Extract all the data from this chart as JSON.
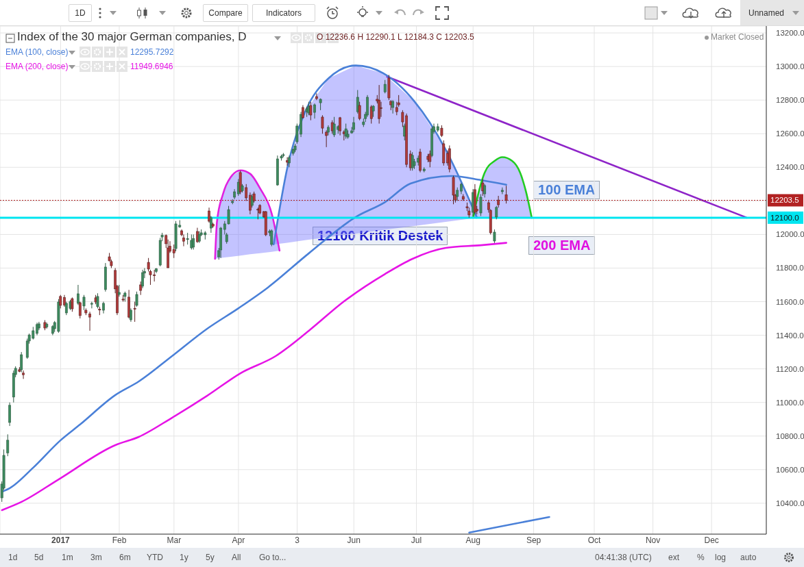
{
  "chart_data": {
    "type": "candlestick",
    "title": "Index of the 30 major German companies, D",
    "x": [
      "2016-12-03",
      "2016-12-04",
      "2016-12-06",
      "2016-12-07",
      "2016-12-09",
      "2016-12-10",
      "2016-12-12",
      "2016-12-13",
      "2016-12-14",
      "2016-12-16",
      "2016-12-17",
      "2016-12-19",
      "2016-12-21",
      "2016-12-22",
      "2016-12-25",
      "2016-12-26",
      "2016-12-29",
      "2016-12-30",
      "2017-01-01",
      "2017-01-02",
      "2017-01-04",
      "2017-01-05",
      "2017-01-07",
      "2017-01-08",
      "2017-01-11",
      "2017-01-12",
      "2017-01-14",
      "2017-01-15",
      "2017-01-17",
      "2017-01-18",
      "2017-01-20",
      "2017-01-21",
      "2017-01-22",
      "2017-01-24",
      "2017-01-25",
      "2017-01-27",
      "2017-01-28",
      "2017-01-30",
      "2017-01-31",
      "2017-02-01",
      "2017-02-03",
      "2017-02-04",
      "2017-02-06",
      "2017-02-07",
      "2017-02-09",
      "2017-02-10",
      "2017-02-12",
      "2017-02-13",
      "2017-02-14",
      "2017-02-16",
      "2017-02-17",
      "2017-02-19",
      "2017-02-20",
      "2017-02-22",
      "2017-02-23",
      "2017-02-25",
      "2017-02-26",
      "2017-02-27",
      "2017-03-01",
      "2017-03-02",
      "2017-03-04",
      "2017-03-05",
      "2017-03-06",
      "2017-03-08",
      "2017-03-10",
      "2017-03-11",
      "2017-03-13",
      "2017-03-14",
      "2017-03-15",
      "2017-03-17",
      "2017-03-19",
      "2017-03-20",
      "2017-03-21",
      "2017-03-24",
      "2017-03-25",
      "2017-03-27",
      "2017-03-28",
      "2017-03-29",
      "2017-03-31",
      "2017-04-01",
      "2017-04-03",
      "2017-04-04",
      "2017-04-05",
      "2017-04-07",
      "2017-04-09",
      "2017-04-10",
      "2017-04-11",
      "2017-04-13",
      "2017-04-14",
      "2017-04-16",
      "2017-04-17",
      "2017-04-19",
      "2017-04-20",
      "2017-04-23",
      "2017-04-25",
      "2017-04-26",
      "2017-04-28",
      "2017-04-29",
      "2017-05-01",
      "2017-05-02",
      "2017-05-03",
      "2017-05-05",
      "2017-05-06",
      "2017-05-08",
      "2017-05-09",
      "2017-05-10",
      "2017-05-12",
      "2017-05-13",
      "2017-05-15",
      "2017-05-16",
      "2017-05-18",
      "2017-05-19",
      "2017-05-21",
      "2017-05-22",
      "2017-05-24",
      "2017-05-25",
      "2017-05-27",
      "2017-05-28",
      "2017-05-29",
      "2017-05-31",
      "2017-06-01",
      "2017-06-03",
      "2017-06-04",
      "2017-06-06",
      "2017-06-07",
      "2017-06-08",
      "2017-06-10",
      "2017-06-11",
      "2017-06-13",
      "2017-06-14",
      "2017-06-15",
      "2017-06-17",
      "2017-06-19",
      "2017-06-20",
      "2017-06-21",
      "2017-06-23",
      "2017-06-24",
      "2017-06-26",
      "2017-06-27",
      "2017-06-28",
      "2017-06-30",
      "2017-07-01",
      "2017-07-02",
      "2017-07-04",
      "2017-07-05",
      "2017-07-07",
      "2017-07-09",
      "2017-07-10",
      "2017-07-11",
      "2017-07-12",
      "2017-07-14",
      "2017-07-16",
      "2017-07-17",
      "2017-07-19",
      "2017-07-20",
      "2017-07-22",
      "2017-07-23",
      "2017-07-24",
      "2017-07-26",
      "2017-07-27",
      "2017-07-29",
      "2017-07-30",
      "2017-08-01",
      "2017-08-02",
      "2017-08-03",
      "2017-08-05",
      "2017-08-06",
      "2017-08-07",
      "2017-08-09",
      "2017-08-10",
      "2017-08-12",
      "2017-08-13",
      "2017-08-14",
      "2017-08-16",
      "2017-08-18"
    ],
    "ohlc": [
      [
        10432,
        10530,
        10408,
        10514
      ],
      [
        10490,
        10720,
        10480,
        10685
      ],
      [
        10700,
        10810,
        10680,
        10775
      ],
      [
        10881,
        11000,
        10860,
        10983
      ],
      [
        11032,
        11190,
        11000,
        11174
      ],
      [
        11166,
        11215,
        11150,
        11203
      ],
      [
        11195,
        11210,
        11180,
        11185
      ],
      [
        11195,
        11300,
        11180,
        11284
      ],
      [
        11175,
        11190,
        11140,
        11165
      ],
      [
        11268,
        11380,
        11260,
        11366
      ],
      [
        11366,
        11410,
        11350,
        11402
      ],
      [
        11382,
        11450,
        11375,
        11427
      ],
      [
        11411,
        11475,
        11400,
        11464
      ],
      [
        11443,
        11480,
        11430,
        11468
      ],
      [
        11476,
        11490,
        11430,
        11443
      ],
      [
        11450,
        11475,
        11440,
        11465
      ],
      [
        11411,
        11460,
        11400,
        11452
      ],
      [
        11439,
        11485,
        11420,
        11476
      ],
      [
        11423,
        11615,
        11415,
        11598
      ],
      [
        11631,
        11640,
        11560,
        11578
      ],
      [
        11625,
        11640,
        11570,
        11580
      ],
      [
        11533,
        11600,
        11520,
        11590
      ],
      [
        11560,
        11610,
        11550,
        11600
      ],
      [
        11618,
        11625,
        11540,
        11557
      ],
      [
        11590,
        11700,
        11580,
        11647
      ],
      [
        11594,
        11600,
        11500,
        11517
      ],
      [
        11574,
        11640,
        11550,
        11627
      ],
      [
        11549,
        11560,
        11520,
        11533
      ],
      [
        11527,
        11540,
        11427,
        11508
      ],
      [
        11585,
        11600,
        11560,
        11590
      ],
      [
        11623,
        11640,
        11585,
        11598
      ],
      [
        11570,
        11650,
        11560,
        11631
      ],
      [
        11555,
        11570,
        11520,
        11550
      ],
      [
        11549,
        11600,
        11530,
        11590
      ],
      [
        11672,
        11830,
        11660,
        11806
      ],
      [
        11867,
        11890,
        11840,
        11843
      ],
      [
        11839,
        11850,
        11800,
        11814
      ],
      [
        11786,
        11800,
        11650,
        11676
      ],
      [
        11692,
        11700,
        11520,
        11533
      ],
      [
        11643,
        11700,
        11630,
        11655
      ],
      [
        11615,
        11640,
        11600,
        11610
      ],
      [
        11631,
        11660,
        11600,
        11651
      ],
      [
        11627,
        11670,
        11500,
        11508
      ],
      [
        11492,
        11560,
        11480,
        11549
      ],
      [
        11560,
        11600,
        11480,
        11555
      ],
      [
        11578,
        11660,
        11570,
        11643
      ],
      [
        11700,
        11720,
        11640,
        11667
      ],
      [
        11692,
        11790,
        11680,
        11773
      ],
      [
        11770,
        11800,
        11740,
        11780
      ],
      [
        11834,
        11860,
        11780,
        11794
      ],
      [
        11780,
        11790,
        11700,
        11760
      ],
      [
        11760,
        11790,
        11720,
        11755
      ],
      [
        11780,
        11800,
        11770,
        11795
      ],
      [
        11818,
        11980,
        11810,
        11965
      ],
      [
        11985,
        12010,
        11960,
        11995
      ],
      [
        11994,
        12000,
        11920,
        11945
      ],
      [
        11920,
        11970,
        11800,
        11802
      ],
      [
        11930,
        11960,
        11890,
        11900
      ],
      [
        11910,
        11940,
        11860,
        11890
      ],
      [
        11916,
        12080,
        11900,
        12063
      ],
      [
        12045,
        12085,
        12040,
        12055
      ],
      [
        12022,
        12030,
        11990,
        11998
      ],
      [
        11980,
        12000,
        11930,
        11960
      ],
      [
        11970,
        12010,
        11940,
        11975
      ],
      [
        11920,
        12000,
        11910,
        11965
      ],
      [
        11925,
        12000,
        11910,
        11975
      ],
      [
        12018,
        12040,
        11950,
        11957
      ],
      [
        11960,
        12020,
        11950,
        12000
      ],
      [
        11998,
        12030,
        11990,
        12010
      ],
      [
        11998,
        12020,
        11970,
        12010
      ],
      [
        12140,
        12160,
        12070,
        12079
      ],
      [
        12038,
        12110,
        12010,
        12100
      ],
      [
        12060,
        12070,
        12040,
        12050
      ],
      [
        11867,
        11920,
        11850,
        11904
      ],
      [
        11908,
        12045,
        11860,
        12038
      ],
      [
        12030,
        12080,
        12000,
        12063
      ],
      [
        11957,
        12010,
        11945,
        11998
      ],
      [
        12063,
        12170,
        12060,
        12148
      ],
      [
        12190,
        12210,
        12180,
        12197
      ],
      [
        12222,
        12270,
        12210,
        12254
      ],
      [
        12242,
        12330,
        12230,
        12311
      ],
      [
        12369,
        12380,
        12240,
        12254
      ],
      [
        12260,
        12300,
        12250,
        12290
      ],
      [
        12279,
        12300,
        12200,
        12218
      ],
      [
        12234,
        12250,
        12120,
        12144
      ],
      [
        12173,
        12240,
        12160,
        12226
      ],
      [
        12242,
        12255,
        12190,
        12201
      ],
      [
        12150,
        12160,
        12090,
        12145
      ],
      [
        12173,
        12180,
        12120,
        12128
      ],
      [
        12136,
        12140,
        12100,
        12104
      ],
      [
        12136,
        12140,
        11990,
        11998
      ],
      [
        12010,
        12030,
        11990,
        12020
      ],
      [
        11941,
        12030,
        11930,
        12022
      ],
      [
        12295,
        12470,
        12290,
        12450
      ],
      [
        12455,
        12475,
        12440,
        12466
      ],
      [
        12470,
        12485,
        12460,
        12475
      ],
      [
        12440,
        12460,
        12410,
        12430
      ],
      [
        12426,
        12470,
        12400,
        12458
      ],
      [
        12483,
        12510,
        12470,
        12507
      ],
      [
        12503,
        12540,
        12490,
        12527
      ],
      [
        12552,
        12660,
        12540,
        12646
      ],
      [
        12597,
        12730,
        12580,
        12715
      ],
      [
        12756,
        12770,
        12690,
        12695
      ],
      [
        12731,
        12760,
        12700,
        12748
      ],
      [
        12723,
        12790,
        12710,
        12764
      ],
      [
        12768,
        12790,
        12680,
        12711
      ],
      [
        12727,
        12780,
        12690,
        12772
      ],
      [
        12821,
        12840,
        12800,
        12809
      ],
      [
        12784,
        12810,
        12740,
        12805
      ],
      [
        12699,
        12710,
        12600,
        12633
      ],
      [
        12609,
        12620,
        12520,
        12589
      ],
      [
        12609,
        12650,
        12590,
        12638
      ],
      [
        12666,
        12680,
        12600,
        12617
      ],
      [
        12593,
        12700,
        12580,
        12658
      ],
      [
        12625,
        12650,
        12600,
        12642
      ],
      [
        12695,
        12700,
        12590,
        12617
      ],
      [
        12610,
        12620,
        12560,
        12600
      ],
      [
        12585,
        12660,
        12570,
        12629
      ],
      [
        12580,
        12620,
        12570,
        12597
      ],
      [
        12605,
        12640,
        12600,
        12617
      ],
      [
        12625,
        12700,
        12610,
        12666
      ],
      [
        12731,
        12860,
        12720,
        12817
      ],
      [
        12768,
        12790,
        12680,
        12690
      ],
      [
        12654,
        12690,
        12640,
        12670
      ],
      [
        12690,
        12730,
        12670,
        12715
      ],
      [
        12711,
        12830,
        12700,
        12817
      ],
      [
        12760,
        12770,
        12660,
        12690
      ],
      [
        12735,
        12770,
        12700,
        12764
      ],
      [
        12805,
        12830,
        12780,
        12795
      ],
      [
        12800,
        12890,
        12660,
        12690
      ],
      [
        12755,
        12790,
        12700,
        12750
      ],
      [
        12849,
        12920,
        12840,
        12894
      ],
      [
        12931,
        12950,
        12800,
        12813
      ],
      [
        12792,
        12800,
        12740,
        12772
      ],
      [
        12756,
        12800,
        12720,
        12792
      ],
      [
        12756,
        12790,
        12710,
        12731
      ],
      [
        12784,
        12830,
        12760,
        12772
      ],
      [
        12727,
        12740,
        12640,
        12670
      ],
      [
        12585,
        12660,
        12560,
        12646
      ],
      [
        12707,
        12720,
        12400,
        12417
      ],
      [
        12479,
        12500,
        12380,
        12397
      ],
      [
        12397,
        12490,
        12380,
        12471
      ],
      [
        12410,
        12450,
        12390,
        12434
      ],
      [
        12430,
        12470,
        12410,
        12454
      ],
      [
        12491,
        12510,
        12370,
        12381
      ],
      [
        12380,
        12400,
        12370,
        12389
      ],
      [
        12466,
        12480,
        12430,
        12446
      ],
      [
        12479,
        12500,
        12400,
        12434
      ],
      [
        12470,
        12640,
        12460,
        12629
      ],
      [
        12613,
        12660,
        12600,
        12642
      ],
      [
        12621,
        12660,
        12610,
        12642
      ],
      [
        12633,
        12650,
        12580,
        12589
      ],
      [
        12540,
        12560,
        12410,
        12426
      ],
      [
        12483,
        12500,
        12410,
        12426
      ],
      [
        12511,
        12530,
        12370,
        12389
      ],
      [
        12340,
        12350,
        12180,
        12234
      ],
      [
        12234,
        12240,
        12190,
        12205
      ],
      [
        12226,
        12280,
        12200,
        12263
      ],
      [
        12258,
        12307,
        12240,
        12299
      ],
      [
        12226,
        12240,
        12200,
        12210
      ],
      [
        12165,
        12190,
        12140,
        12158
      ],
      [
        12140,
        12160,
        12100,
        12116
      ],
      [
        12132,
        12270,
        12110,
        12250
      ],
      [
        12267,
        12300,
        12120,
        12132
      ],
      [
        12150,
        12170,
        12120,
        12140
      ],
      [
        12128,
        12240,
        12110,
        12222
      ],
      [
        12307,
        12330,
        12230,
        12259
      ],
      [
        12242,
        12300,
        12220,
        12291
      ],
      [
        12189,
        12200,
        12130,
        12148
      ],
      [
        12144,
        12150,
        12000,
        12010
      ],
      [
        11961,
        12030,
        11949,
        12014
      ],
      [
        12104,
        12170,
        12090,
        12161
      ],
      [
        12205,
        12230,
        12160,
        12177
      ],
      [
        12255,
        12280,
        12240,
        12263
      ],
      [
        12236.6,
        12290.1,
        12184.3,
        12203.5
      ]
    ],
    "series": [
      {
        "name": "EMA (100, close)",
        "type": "line",
        "color": "#4a80d8",
        "x": [
          "2016-12-03",
          "2016-12-07",
          "2016-12-19",
          "2017-01-02",
          "2017-01-12",
          "2017-01-30",
          "2017-02-11",
          "2017-02-28",
          "2017-03-18",
          "2017-04-03",
          "2017-04-18",
          "2017-05-09",
          "2017-06-02",
          "2017-06-17",
          "2017-06-30",
          "2017-07-21",
          "2017-08-05",
          "2017-08-18"
        ],
        "values": [
          10469,
          10490,
          10612,
          10775,
          10869,
          11044,
          11125,
          11276,
          11439,
          11561,
          11684,
          11888,
          12104,
          12193,
          12303,
          12348,
          12324,
          12296
        ]
      },
      {
        "name": "EMA (200, close)",
        "type": "line",
        "color": "#e614e6",
        "x": [
          "2016-12-03",
          "2016-12-13",
          "2017-01-01",
          "2017-01-30",
          "2017-02-11",
          "2017-02-28",
          "2017-03-18",
          "2017-04-04",
          "2017-04-22",
          "2017-05-09",
          "2017-05-27",
          "2017-06-17",
          "2017-07-01",
          "2017-07-18",
          "2017-08-05",
          "2017-08-18"
        ],
        "values": [
          10359,
          10408,
          10542,
          10746,
          10795,
          10909,
          11040,
          11174,
          11276,
          11427,
          11602,
          11765,
          11855,
          11920,
          11936,
          11950
        ]
      },
      {
        "type": "line",
        "color": "#8e24c8",
        "x": [
          "2017-06-18",
          "2017-12-19"
        ],
        "values": [
          12939,
          12100
        ]
      },
      {
        "type": "line",
        "color": "#4a80d8",
        "x": [
          "2017-07-30",
          "2017-09-09"
        ],
        "values": [
          10225,
          10318
        ]
      },
      {
        "type": "line",
        "color": "#e020e0",
        "x": [
          "2017-03-22",
          "2017-03-23",
          "2017-03-26",
          "2017-03-30",
          "2017-04-04",
          "2017-04-09",
          "2017-04-14",
          "2017-04-20",
          "2017-04-24"
        ],
        "values": [
          11855,
          12076,
          12238,
          12341,
          12382,
          12361,
          12275,
          12124,
          11904
        ],
        "lower": [
          11855,
          11857,
          11862,
          11867,
          11874,
          11882,
          11889,
          11897,
          11904
        ],
        "upper": [
          11855,
          12076,
          12238,
          12341,
          12382,
          12361,
          12275,
          12124,
          11904
        ]
      },
      {
        "type": "line",
        "color": "#4a80d8",
        "x": [
          "2017-04-21",
          "2017-04-28",
          "2017-05-07",
          "2017-05-19",
          "2017-06-02",
          "2017-06-16",
          "2017-07-02",
          "2017-07-18",
          "2017-08-03"
        ],
        "values": [
          11941,
          12398,
          12727,
          12929,
          13006,
          12960,
          12792,
          12505,
          12100
        ],
        "lower": [
          11941,
          11951,
          11966,
          11984,
          12005,
          12027,
          12051,
          12075,
          12100
        ],
        "upper": [
          11941,
          12398,
          12727,
          12929,
          13006,
          12960,
          12792,
          12505,
          12100
        ]
      },
      {
        "type": "line",
        "color": "#22cc22",
        "x": [
          "2017-08-01",
          "2017-08-04",
          "2017-08-07",
          "2017-08-12",
          "2017-08-16",
          "2017-08-21",
          "2017-08-25",
          "2017-08-28",
          "2017-08-31"
        ],
        "values": [
          12100,
          12258,
          12370,
          12438,
          12460,
          12438,
          12370,
          12258,
          12100
        ],
        "lower": [
          12100,
          12100,
          12100,
          12100,
          12100,
          12100,
          12100,
          12100,
          12100
        ],
        "upper": [
          12100,
          12258,
          12370,
          12438,
          12460,
          12438,
          12370,
          12258,
          12100
        ]
      }
    ],
    "xlim": [
      "2016-12-02",
      "2017-12-29"
    ],
    "xticks": [
      {
        "value": "2017-01-02",
        "label": "2017"
      },
      {
        "value": "2017-02-01",
        "label": "Feb"
      },
      {
        "value": "2017-03-01",
        "label": "Mar"
      },
      {
        "value": "2017-04-03",
        "label": "Apr"
      },
      {
        "value": "2017-05-03",
        "label": "3"
      },
      {
        "value": "2017-06-01",
        "label": "Jun"
      },
      {
        "value": "2017-07-03",
        "label": "Jul"
      },
      {
        "value": "2017-08-01",
        "label": "Aug"
      },
      {
        "value": "2017-09-01",
        "label": "Sep"
      },
      {
        "value": "2017-10-02",
        "label": "Oct"
      },
      {
        "value": "2017-11-01",
        "label": "Nov"
      },
      {
        "value": "2017-12-01",
        "label": "Dec"
      }
    ],
    "ylim": [
      10216,
      13241
    ],
    "yticks": [
      {
        "value": 10400,
        "label": "10400.0"
      },
      {
        "value": 10600,
        "label": "10600.0"
      },
      {
        "value": 10800,
        "label": "10800.0"
      },
      {
        "value": 11000,
        "label": "11000.0"
      },
      {
        "value": 11200,
        "label": "11200.0"
      },
      {
        "value": 11400,
        "label": "11400.0"
      },
      {
        "value": 11600,
        "label": "11600.0"
      },
      {
        "value": 11800,
        "label": "11800.0"
      },
      {
        "value": 12000,
        "label": "12000.0"
      },
      {
        "value": 12200,
        "label": null
      },
      {
        "value": 12400,
        "label": "12400.0"
      },
      {
        "value": 12600,
        "label": "12600.0"
      },
      {
        "value": 12800,
        "label": "12800.0"
      },
      {
        "value": 13000,
        "label": "13000.0"
      },
      {
        "value": 13200,
        "label": "13200.0"
      }
    ],
    "ref_lines": [
      {
        "axis": "y",
        "value": 12100,
        "label": "12100.0",
        "color": "#00e5f0",
        "line_style": "solid"
      },
      {
        "axis": "y",
        "value": 12203.5,
        "label": "12203.5",
        "color": "#b22222",
        "line_style": "dotted"
      }
    ],
    "annotations": [
      "1D",
      "Compare",
      "Indicators",
      "Unnamed",
      "Market Closed",
      "O 12236.6 H 12290.1 L 12184.3 C 12203.5",
      "1d",
      "5d",
      "1m",
      "3m",
      "6m",
      "YTD",
      "1y",
      "5y",
      "All",
      "Go to...",
      "04:41:38 (UTC)",
      "ext",
      "%",
      "log",
      "auto",
      "12295.7292",
      "11949.6946",
      "12100 Kritik Destek",
      "100 EMA",
      "200 EMA"
    ],
    "grid": true,
    "legend": "top left"
  }
}
